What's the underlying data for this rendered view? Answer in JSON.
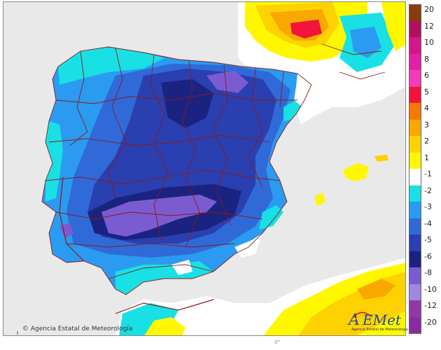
{
  "map": {
    "copyright": "© Agencia Estatal de Meteorología",
    "logo_text": "AEMet",
    "logo_subtitle": "Agencia Estatal de Meteorología",
    "degree_label": "0°"
  },
  "legend": {
    "items": [
      {
        "label": "20",
        "color": "#8a3c0a"
      },
      {
        "label": "12",
        "color": "#b01060"
      },
      {
        "label": "10",
        "color": "#d0188a"
      },
      {
        "label": "8",
        "color": "#e41ea8"
      },
      {
        "label": "6",
        "color": "#f43cb8"
      },
      {
        "label": "5",
        "color": "#f2143a"
      },
      {
        "label": "4",
        "color": "#f57a00"
      },
      {
        "label": "3",
        "color": "#f9a800"
      },
      {
        "label": "2",
        "color": "#fdd200"
      },
      {
        "label": "1",
        "color": "#fff700"
      },
      {
        "label": "-1",
        "color": "#ffffff"
      },
      {
        "label": "-2",
        "color": "#18e0e4"
      },
      {
        "label": "-3",
        "color": "#2a9bf0"
      },
      {
        "label": "-4",
        "color": "#2f6ad8"
      },
      {
        "label": "-5",
        "color": "#2a3fb0"
      },
      {
        "label": "-6",
        "color": "#1a2380"
      },
      {
        "label": "-8",
        "color": "#7b5bd0"
      },
      {
        "label": "-10",
        "color": "#a088e0"
      },
      {
        "label": "-12",
        "color": "#9038a8"
      },
      {
        "label": "-20",
        "color": "#8a2ca0"
      }
    ]
  },
  "colors": {
    "sea": "#e9e9e9",
    "land_outside": "#f2f2f2",
    "border_line": "#8b1a1a",
    "logo_blue": "#1e4aa8",
    "logo_red": "#c8201e",
    "logo_yellow": "#f0c010"
  }
}
